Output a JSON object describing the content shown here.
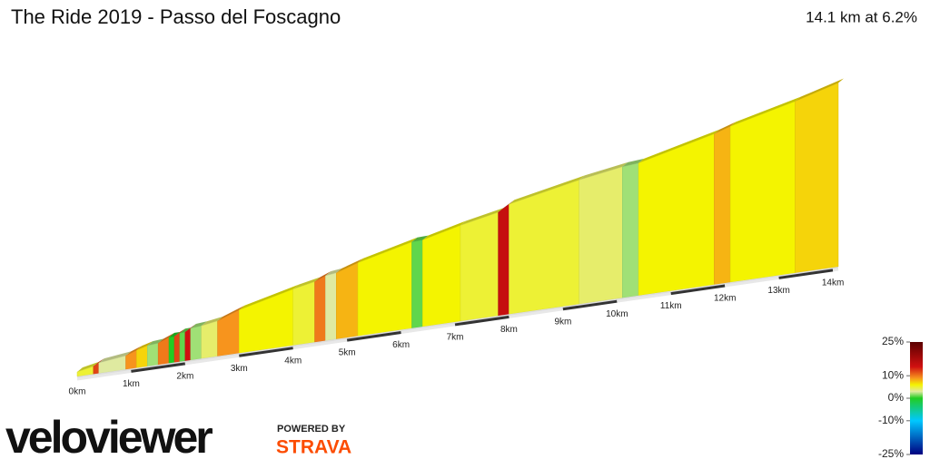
{
  "chart_data": {
    "type": "gradient-profile",
    "title": "The Ride 2019 - Passo del Foscagno",
    "summary": "14.1 km at 6.2%",
    "x": [
      0,
      0.3,
      0.4,
      0.9,
      1.1,
      1.3,
      1.5,
      1.7,
      1.8,
      1.9,
      2.0,
      2.1,
      2.3,
      2.6,
      3.0,
      4.0,
      4.4,
      4.6,
      4.8,
      5.2,
      6.2,
      6.4,
      7.1,
      7.8,
      8.0,
      9.3,
      10.1,
      10.4,
      11.8,
      12.1,
      13.3
    ],
    "gradient": [
      5,
      12,
      3,
      9,
      7,
      2,
      10,
      0,
      12,
      1,
      14,
      2,
      4,
      9,
      6,
      5,
      10,
      3,
      8,
      6,
      1,
      6,
      5,
      15,
      5,
      4,
      2,
      6,
      8,
      6,
      7
    ],
    "xlim": [
      0,
      14.1
    ],
    "xticks": [
      {
        "value": 0,
        "label": "0km"
      },
      {
        "value": 1,
        "label": "1km"
      },
      {
        "value": 2,
        "label": "2km"
      },
      {
        "value": 3,
        "label": "3km"
      },
      {
        "value": 4,
        "label": "4km"
      },
      {
        "value": 5,
        "label": "5km"
      },
      {
        "value": 6,
        "label": "6km"
      },
      {
        "value": 7,
        "label": "7km"
      },
      {
        "value": 8,
        "label": "8km"
      },
      {
        "value": 9,
        "label": "9km"
      },
      {
        "value": 10,
        "label": "10km"
      },
      {
        "value": 11,
        "label": "11km"
      },
      {
        "value": 12,
        "label": "12km"
      },
      {
        "value": 13,
        "label": "13km"
      },
      {
        "value": 14,
        "label": "14km"
      }
    ],
    "colorscale": [
      [
        -25,
        "#000080"
      ],
      [
        -10,
        "#00c8ff"
      ],
      [
        0,
        "#22cc22"
      ],
      [
        3,
        "#dfeaa0"
      ],
      [
        6,
        "#f4f400"
      ],
      [
        9,
        "#f7941d"
      ],
      [
        14,
        "#d01010"
      ],
      [
        25,
        "#5a0000"
      ]
    ],
    "clim": [
      -25,
      25
    ],
    "cticks": [
      {
        "value": 25,
        "label": "25%"
      },
      {
        "value": 10,
        "label": "10%"
      },
      {
        "value": 0,
        "label": "0%"
      },
      {
        "value": -10,
        "label": "-10%"
      },
      {
        "value": -25,
        "label": "-25%"
      }
    ]
  },
  "logo": {
    "brand": "veloviewer",
    "powered": "POWERED BY",
    "partner": "STRAVA"
  }
}
